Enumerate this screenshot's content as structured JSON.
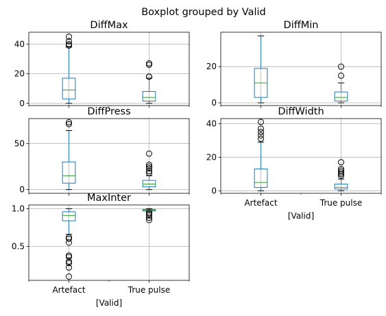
{
  "figure": {
    "suptitle": "Boxplot grouped by Valid"
  },
  "colors": {
    "box": "#1f77b4",
    "median": "#2ca02c",
    "whisker": "#000000",
    "grid": "#b0b0b0",
    "flier_edge": "#000000",
    "axes": "#000000"
  },
  "chart_data": [
    {
      "type": "box",
      "title": "DiffMax",
      "xlabel": "",
      "categories": [
        "Artefact",
        "True pulse"
      ],
      "show_xticklabels": false,
      "ylim": [
        -1.5,
        48
      ],
      "yticks": [
        0,
        20,
        40
      ],
      "grid": true,
      "boxes": [
        {
          "category": "Artefact",
          "whislo": 0,
          "q1": 3,
          "med": 9,
          "q3": 17,
          "whishi": 38,
          "fliers": [
            39,
            40,
            42,
            45
          ]
        },
        {
          "category": "True pulse",
          "whislo": 0,
          "q1": 1.5,
          "med": 4,
          "q3": 8,
          "whishi": 17,
          "fliers": [
            18,
            18,
            26,
            27
          ]
        }
      ]
    },
    {
      "type": "box",
      "title": "DiffMin",
      "xlabel": "",
      "categories": [
        "Artefact",
        "True pulse"
      ],
      "show_xticklabels": false,
      "ylim": [
        -1.5,
        39
      ],
      "yticks": [
        0,
        20
      ],
      "grid": true,
      "boxes": [
        {
          "category": "Artefact",
          "whislo": 0,
          "q1": 3,
          "med": 11,
          "q3": 19,
          "whishi": 37,
          "fliers": []
        },
        {
          "category": "True pulse",
          "whislo": 0,
          "q1": 1,
          "med": 3,
          "q3": 6,
          "whishi": 11,
          "fliers": [
            15,
            20
          ]
        }
      ]
    },
    {
      "type": "box",
      "title": "DiffPress",
      "xlabel": "",
      "categories": [
        "Artefact",
        "True pulse"
      ],
      "show_xticklabels": false,
      "ylim": [
        -4,
        77
      ],
      "yticks": [
        0,
        50
      ],
      "grid": true,
      "boxes": [
        {
          "category": "Artefact",
          "whislo": 0,
          "q1": 7,
          "med": 15,
          "q3": 30,
          "whishi": 64,
          "fliers": [
            71,
            73
          ]
        },
        {
          "category": "True pulse",
          "whislo": 0,
          "q1": 3,
          "med": 6,
          "q3": 10,
          "whishi": 15,
          "fliers": [
            18,
            20,
            23,
            25,
            27,
            39
          ]
        }
      ]
    },
    {
      "type": "box",
      "title": "DiffWidth",
      "xlabel": "[Valid]",
      "categories": [
        "Artefact",
        "True pulse"
      ],
      "show_xticklabels": true,
      "ylim": [
        -1.5,
        43
      ],
      "yticks": [
        0,
        20,
        40
      ],
      "grid": true,
      "boxes": [
        {
          "category": "Artefact",
          "whislo": 0,
          "q1": 2,
          "med": 5,
          "q3": 13,
          "whishi": 29,
          "fliers": [
            31,
            33,
            35,
            37,
            41
          ]
        },
        {
          "category": "True pulse",
          "whislo": 0,
          "q1": 1,
          "med": 2,
          "q3": 4,
          "whishi": 7,
          "fliers": [
            9,
            10,
            11,
            12,
            13,
            17
          ]
        }
      ]
    },
    {
      "type": "box",
      "title": "MaxInter",
      "xlabel": "[Valid]",
      "categories": [
        "Artefact",
        "True pulse"
      ],
      "show_xticklabels": true,
      "ylim": [
        0.05,
        1.05
      ],
      "yticks": [
        0.5,
        1.0
      ],
      "yticklabels": [
        "0.5",
        "1.0"
      ],
      "grid": true,
      "boxes": [
        {
          "category": "Artefact",
          "whislo": 0.66,
          "q1": 0.84,
          "med": 0.91,
          "q3": 0.96,
          "whishi": 1.0,
          "fliers": [
            0.1,
            0.22,
            0.28,
            0.3,
            0.36,
            0.38,
            0.55,
            0.6,
            0.62
          ]
        },
        {
          "category": "True pulse",
          "whislo": 0.96,
          "q1": 0.97,
          "med": 0.98,
          "q3": 0.99,
          "whishi": 1.0,
          "fliers": [
            0.85,
            0.88,
            0.91,
            0.93,
            0.95
          ]
        }
      ]
    }
  ]
}
